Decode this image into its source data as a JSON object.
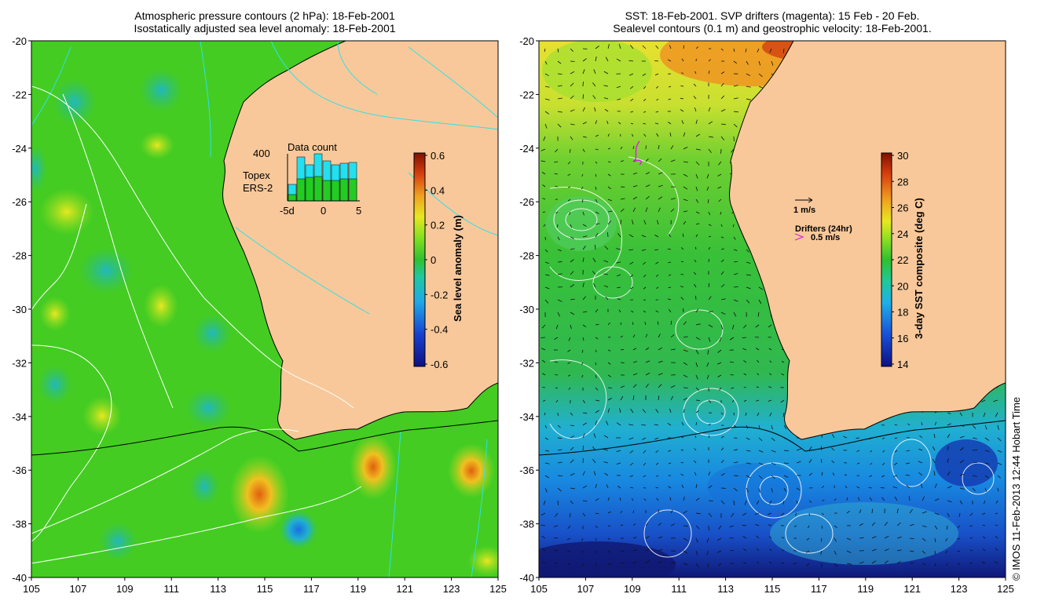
{
  "left_panel": {
    "title_line1": "Atmospheric pressure contours (2 hPa): 18-Feb-2001",
    "title_line2": "Isostatically adjusted sea level anomaly: 18-Feb-2001",
    "x_ticks": [
      "105",
      "107",
      "109",
      "111",
      "113",
      "115",
      "117",
      "119",
      "121",
      "123",
      "125"
    ],
    "y_ticks": [
      "-20",
      "-22",
      "-24",
      "-26",
      "-28",
      "-30",
      "-32",
      "-34",
      "-36",
      "-38",
      "-40"
    ],
    "colorbar_label": "Sea level anomaly (m)",
    "colorbar_ticks": [
      "0.6",
      "0.4",
      "0.2",
      "0",
      "-0.2",
      "-0.4",
      "-0.6"
    ],
    "inset": {
      "title": "Data count",
      "y_label": "400",
      "legend_topex": "Topex",
      "legend_ers2": "ERS-2",
      "x_ticks": [
        "-5d",
        "0",
        "5"
      ],
      "topex_color": "#22e0f0",
      "ers2_color": "#22cc22"
    }
  },
  "right_panel": {
    "title_line1": "SST: 18-Feb-2001. SVP drifters (magenta): 15 Feb - 20 Feb.",
    "title_line2": "Sealevel contours (0.1 m) and geostrophic velocity: 18-Feb-2001.",
    "x_ticks": [
      "105",
      "107",
      "109",
      "111",
      "113",
      "115",
      "117",
      "119",
      "121",
      "123",
      "125"
    ],
    "y_ticks": [
      "-20",
      "-22",
      "-24",
      "-26",
      "-28",
      "-30",
      "-32",
      "-34",
      "-36",
      "-38",
      "-40"
    ],
    "colorbar_label": "3-day SST composite (deg C)",
    "colorbar_ticks": [
      "30",
      "28",
      "26",
      "24",
      "22",
      "20",
      "18",
      "16",
      "14"
    ],
    "velocity_scale_label": "1 m/s",
    "drifter_legend_title": "Drifters (24hr)",
    "drifter_legend_value": "0.5 m/s",
    "drifter_color": "#dd22dd"
  },
  "credit": "© IMOS 11-Feb-2013 12:44 Hobart Time",
  "colors": {
    "land": "#f8c89a",
    "ocean_base": "#44cc22",
    "coast": "#000000"
  }
}
